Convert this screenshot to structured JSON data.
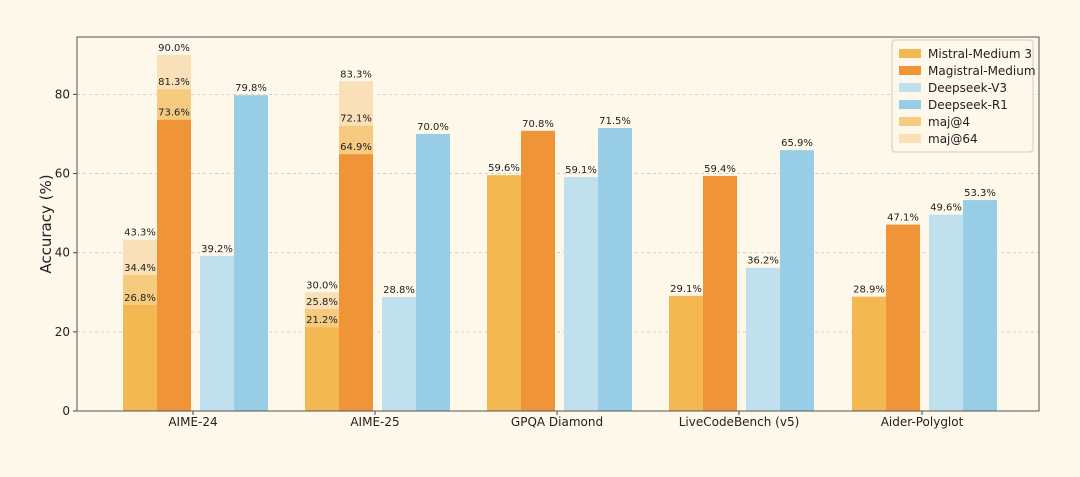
{
  "chart_data": {
    "type": "bar",
    "ylabel": "Accuracy (%)",
    "xlabel": "",
    "title": "",
    "ylim": [
      0,
      94.5
    ],
    "yticks": [
      0,
      20,
      40,
      60,
      80
    ],
    "grid": "horizontal dashed",
    "legend_position": "top-right",
    "categories": [
      "AIME-24",
      "AIME-25",
      "GPQA Diamond",
      "LiveCodeBench (v5)",
      "Aider-Polyglot"
    ],
    "series": [
      {
        "name": "Mistral-Medium 3",
        "color": "#f3b851",
        "values": [
          26.8,
          21.2,
          59.6,
          29.1,
          28.9
        ],
        "maj4": [
          34.4,
          25.8,
          null,
          null,
          null
        ],
        "maj64": [
          43.3,
          30.0,
          null,
          null,
          null
        ]
      },
      {
        "name": "Magistral-Medium",
        "color": "#ef9537",
        "values": [
          73.6,
          64.9,
          70.8,
          59.4,
          47.1
        ],
        "maj4": [
          81.3,
          72.1,
          null,
          null,
          null
        ],
        "maj64": [
          90.0,
          83.3,
          null,
          null,
          null
        ]
      },
      {
        "name": "Deepseek-V3",
        "color": "#c1e0ed",
        "values": [
          39.2,
          28.8,
          59.1,
          36.2,
          49.6
        ]
      },
      {
        "name": "Deepseek-R1",
        "color": "#98cde6",
        "values": [
          79.8,
          70.0,
          71.5,
          65.9,
          53.3
        ]
      }
    ],
    "legend": [
      {
        "label": "Mistral-Medium 3",
        "color": "#f3b851"
      },
      {
        "label": "Magistral-Medium",
        "color": "#ef9537"
      },
      {
        "label": "Deepseek-V3",
        "color": "#c1e0ed"
      },
      {
        "label": "Deepseek-R1",
        "color": "#98cde6"
      },
      {
        "label": "maj@4",
        "color": "#f6cb80"
      },
      {
        "label": "maj@64",
        "color": "#f9e0b8"
      }
    ],
    "maj_colors": {
      "maj4": "#f6cb80",
      "maj64": "#f9e0b8"
    }
  }
}
